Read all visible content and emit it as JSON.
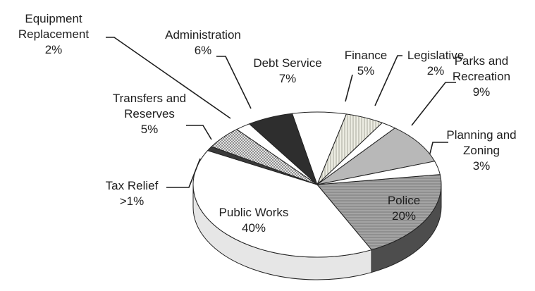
{
  "chart_data": {
    "type": "pie",
    "style": "3d",
    "slices": [
      {
        "name": "Police",
        "value": 20,
        "pct": "20%",
        "lines": [
          "Police"
        ],
        "color": "#9a9a9a",
        "pattern": "hatch",
        "side": "#4d4d4d"
      },
      {
        "name": "Public Works",
        "value": 40,
        "pct": "40%",
        "lines": [
          "Public Works"
        ],
        "color": "#ffffff",
        "pattern": "",
        "side": "#e6e6e6"
      },
      {
        "name": "Tax Relief",
        "value": 1,
        "pct": ">1%",
        "lines": [
          "Tax Relief"
        ],
        "color": "#3a3a3a",
        "pattern": "",
        "side": "#262626"
      },
      {
        "name": "Transfers and Reserves",
        "value": 5,
        "pct": "5%",
        "lines": [
          "Transfers and",
          "Reserves"
        ],
        "color": "#cfcfcf",
        "pattern": "dots",
        "side": "#9a9a9a"
      },
      {
        "name": "Equipment Replacement",
        "value": 2,
        "pct": "2%",
        "lines": [
          "Equipment",
          "Replacement"
        ],
        "color": "#ffffff",
        "pattern": "",
        "side": "#e6e6e6"
      },
      {
        "name": "Administration",
        "value": 6,
        "pct": "6%",
        "lines": [
          "Administration"
        ],
        "color": "#2e2e2e",
        "pattern": "",
        "side": "#1e1e1e"
      },
      {
        "name": "Debt Service",
        "value": 7,
        "pct": "7%",
        "lines": [
          "Debt Service"
        ],
        "color": "#ffffff",
        "pattern": "",
        "side": "#e6e6e6"
      },
      {
        "name": "Finance",
        "value": 5,
        "pct": "5%",
        "lines": [
          "Finance"
        ],
        "color": "#e4e4d8",
        "pattern": "vlines",
        "side": "#b0b0a6"
      },
      {
        "name": "Legislative",
        "value": 2,
        "pct": "2%",
        "lines": [
          "Legislative"
        ],
        "color": "#ffffff",
        "pattern": "",
        "side": "#e6e6e6"
      },
      {
        "name": "Parks and Recreation",
        "value": 9,
        "pct": "9%",
        "lines": [
          "Parks and",
          "Recreation"
        ],
        "color": "#b8b8b8",
        "pattern": "",
        "side": "#8a8a8a"
      },
      {
        "name": "Planning and Zoning",
        "value": 3,
        "pct": "3%",
        "lines": [
          "Planning and",
          "Zoning"
        ],
        "color": "#ffffff",
        "pattern": "",
        "side": "#e6e6e6"
      }
    ]
  }
}
